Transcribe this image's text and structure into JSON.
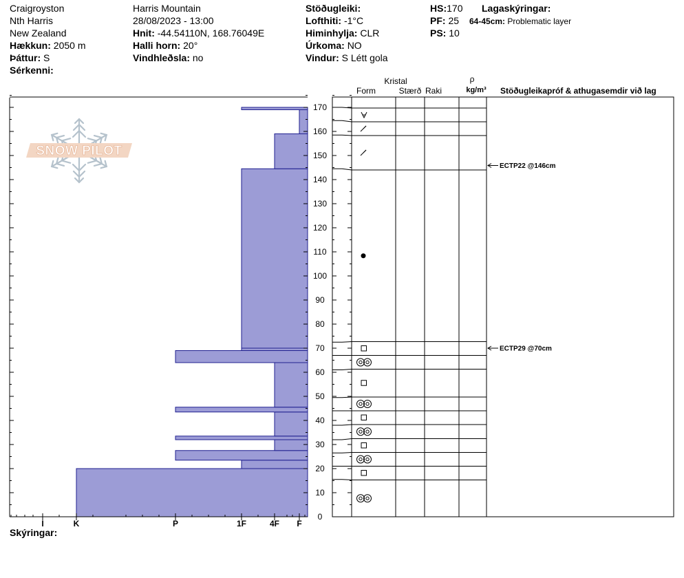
{
  "header": {
    "col1": {
      "location": "Craigroyston",
      "range": "Nth Harris",
      "country": "New Zealand",
      "elevation_label": "Hækkun:",
      "elevation": "2050 m",
      "aspect_label": "Þáttur:",
      "aspect": "S",
      "specifics_label": "Sérkenni:"
    },
    "col2": {
      "mountain": "Harris Mountain",
      "datetime": "28/08/2023 - 13:00",
      "coords_label": "Hnit:",
      "coords": "-44.54110N, 168.76049E",
      "slope_label": "Halli horn:",
      "slope": "20°",
      "wind_loading_label": "Vindhleðsla:",
      "wind_loading": "no"
    },
    "col3": {
      "stability_label": "Stöðugleiki:",
      "air_temp_label": "Lofthiti:",
      "air_temp": "-1°C",
      "sky_label": "Himinhylja:",
      "sky": "CLR",
      "precip_label": "Úrkoma:",
      "precip": "NO",
      "wind_label": "Vindur:",
      "wind": "S Létt gola"
    },
    "col4": {
      "hs_label": "HS:",
      "hs": "170",
      "pf_label": "PF:",
      "pf": "25",
      "ps_label": "PS:",
      "ps": "10"
    },
    "col5": {
      "legend_label": "Lagaskýringar:",
      "layer_range": "64-45cm:",
      "layer_note": "Problematic layer"
    }
  },
  "logo": {
    "text": "SNOW PILOT"
  },
  "columns": {
    "crystal_group": "Kristal",
    "form": "Form",
    "size": "Stærð",
    "moisture": "Raki",
    "density_symbol": "ρ",
    "density_unit": "kg/m³",
    "comments": "Stöðugleikapróf & athugasemdir við lag"
  },
  "footer": {
    "notes_label": "Skýringar:"
  },
  "chart_data": {
    "type": "snow-profile",
    "y_axis": {
      "range": [
        0,
        175
      ],
      "ticks": [
        0,
        10,
        20,
        30,
        40,
        50,
        60,
        70,
        80,
        90,
        100,
        110,
        120,
        130,
        140,
        150,
        160,
        170
      ]
    },
    "hardness_scale": [
      "I",
      "K",
      "P",
      "1F",
      "4F",
      "F"
    ],
    "hardness_profile": [
      {
        "bottom": 0,
        "top": 20,
        "hardness": "K"
      },
      {
        "bottom": 20,
        "top": 23.5,
        "hardness": "1F"
      },
      {
        "bottom": 23.5,
        "top": 27.5,
        "hardness": "P"
      },
      {
        "bottom": 27.5,
        "top": 32,
        "hardness": "4F"
      },
      {
        "bottom": 32,
        "top": 33.5,
        "hardness": "P"
      },
      {
        "bottom": 33.5,
        "top": 43.5,
        "hardness": "4F"
      },
      {
        "bottom": 43.5,
        "top": 45.5,
        "hardness": "P"
      },
      {
        "bottom": 45.5,
        "top": 64,
        "hardness": "4F"
      },
      {
        "bottom": 64,
        "top": 69,
        "hardness": "P"
      },
      {
        "bottom": 69,
        "top": 70,
        "hardness": "1F"
      },
      {
        "bottom": 70,
        "top": 144.5,
        "hardness": "1F"
      },
      {
        "bottom": 144.5,
        "top": 159,
        "hardness": "4F"
      },
      {
        "bottom": 159,
        "top": 169,
        "hardness": "F"
      },
      {
        "bottom": 169,
        "top": 170,
        "hardness": "1F"
      }
    ],
    "layers": [
      {
        "bottom": 0,
        "top": 15.5,
        "form": "rounded-polycrystal"
      },
      {
        "bottom": 15.5,
        "top": 21,
        "form": "faceted"
      },
      {
        "bottom": 21,
        "top": 26.5,
        "form": "rounded-polycrystal"
      },
      {
        "bottom": 26.5,
        "top": 32,
        "form": "faceted"
      },
      {
        "bottom": 32,
        "top": 38,
        "form": "rounded-polycrystal"
      },
      {
        "bottom": 38,
        "top": 44,
        "form": "faceted"
      },
      {
        "bottom": 44,
        "top": 49.5,
        "form": "rounded-polycrystal"
      },
      {
        "bottom": 49.5,
        "top": 61,
        "form": "faceted"
      },
      {
        "bottom": 61,
        "top": 67,
        "form": "rounded-polycrystal"
      },
      {
        "bottom": 67,
        "top": 72.5,
        "form": "faceted"
      },
      {
        "bottom": 72.5,
        "top": 144.5,
        "form": "melt-freeze"
      },
      {
        "bottom": 144.5,
        "top": 158.5,
        "form": "decomposing"
      },
      {
        "bottom": 158.5,
        "top": 164.5,
        "form": "decomposing"
      },
      {
        "bottom": 164.5,
        "top": 170,
        "form": "new-snow"
      }
    ],
    "tests": [
      {
        "label": "ECTP22 @146cm",
        "depth": 146
      },
      {
        "label": "ECTP29 @70cm",
        "depth": 70
      }
    ]
  }
}
